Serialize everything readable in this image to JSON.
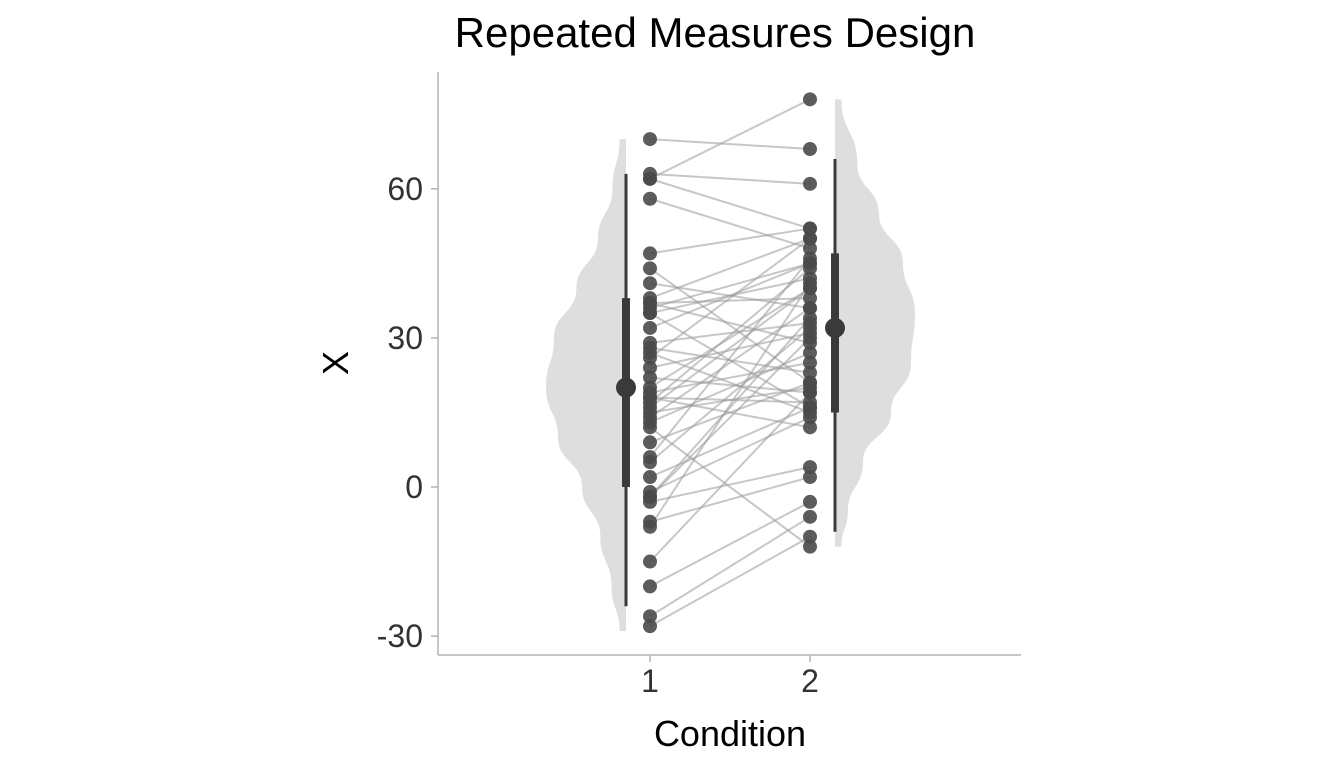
{
  "chart_data": {
    "type": "scatter",
    "subtype": "raincloud-repeated-measures",
    "title": "Repeated Measures Design",
    "xlabel": "Condition",
    "ylabel": "X",
    "categories": [
      "1",
      "2"
    ],
    "ylim": [
      -34,
      84
    ],
    "yticks": [
      -30,
      0,
      30,
      60
    ],
    "grid": false,
    "colors": {
      "violin": "#dedede",
      "points": "#4a4a4a",
      "lines": "#999999",
      "summary": "#3a3a3a",
      "axis": "#b3b3b3"
    },
    "pairs": [
      [
        70,
        68
      ],
      [
        63,
        61
      ],
      [
        62,
        52
      ],
      [
        62,
        78
      ],
      [
        58,
        48
      ],
      [
        47,
        52
      ],
      [
        44,
        21
      ],
      [
        41,
        36
      ],
      [
        38,
        50
      ],
      [
        37,
        29
      ],
      [
        36,
        45
      ],
      [
        35,
        16
      ],
      [
        37,
        38
      ],
      [
        35,
        42
      ],
      [
        32,
        45
      ],
      [
        29,
        33
      ],
      [
        28,
        23
      ],
      [
        27,
        15
      ],
      [
        26,
        50
      ],
      [
        24,
        31
      ],
      [
        22,
        19
      ],
      [
        20,
        40
      ],
      [
        19,
        25
      ],
      [
        18,
        17
      ],
      [
        18,
        12
      ],
      [
        17,
        44
      ],
      [
        16,
        40
      ],
      [
        15,
        20
      ],
      [
        14,
        36
      ],
      [
        13,
        27
      ],
      [
        9,
        21
      ],
      [
        6,
        46
      ],
      [
        5,
        32
      ],
      [
        2,
        16
      ],
      [
        -1,
        14
      ],
      [
        -2,
        30
      ],
      [
        -3,
        4
      ],
      [
        -7,
        2
      ],
      [
        -8,
        41
      ],
      [
        -15,
        19
      ],
      [
        -20,
        -3
      ],
      [
        -26,
        -6
      ],
      [
        -28,
        -10
      ],
      [
        -2,
        34
      ],
      [
        12,
        -12
      ]
    ],
    "summary": [
      {
        "category": "1",
        "median": 20,
        "q1": 0,
        "q3": 38,
        "lower": -24,
        "upper": 63
      },
      {
        "category": "2",
        "median": 32,
        "q1": 15,
        "q3": 47,
        "lower": -9,
        "upper": 66
      }
    ],
    "density": [
      {
        "category": "1",
        "side": "left",
        "ymin": -29,
        "ymax": 70,
        "profile": [
          [
            -29,
            0.08
          ],
          [
            -20,
            0.18
          ],
          [
            -10,
            0.32
          ],
          [
            0,
            0.55
          ],
          [
            10,
            0.85
          ],
          [
            20,
            1.0
          ],
          [
            30,
            0.9
          ],
          [
            40,
            0.62
          ],
          [
            50,
            0.35
          ],
          [
            60,
            0.17
          ],
          [
            70,
            0.08
          ]
        ]
      },
      {
        "category": "2",
        "side": "right",
        "ymin": -12,
        "ymax": 78,
        "profile": [
          [
            -12,
            0.08
          ],
          [
            -5,
            0.16
          ],
          [
            5,
            0.35
          ],
          [
            15,
            0.7
          ],
          [
            25,
            0.95
          ],
          [
            35,
            1.0
          ],
          [
            45,
            0.85
          ],
          [
            55,
            0.55
          ],
          [
            65,
            0.28
          ],
          [
            78,
            0.08
          ]
        ]
      }
    ]
  }
}
